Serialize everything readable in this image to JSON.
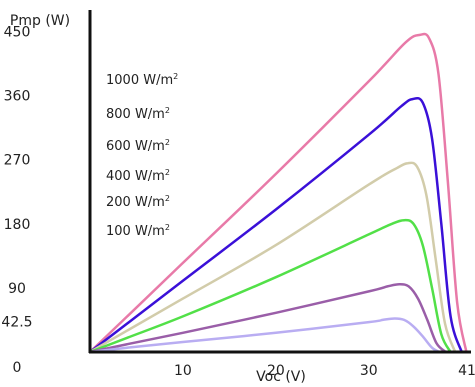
{
  "chart_data": {
    "type": "line",
    "title": "",
    "xlabel": "Voc (V)",
    "ylabel": "Pmp (W)",
    "xlim": [
      0,
      41
    ],
    "ylim": [
      0,
      480
    ],
    "x_ticks": [
      {
        "value": 10,
        "label": "10"
      },
      {
        "value": 20,
        "label": "20"
      },
      {
        "value": 30,
        "label": "30"
      },
      {
        "value": 41,
        "label": "41"
      }
    ],
    "y_ticks": [
      {
        "value": 0,
        "label": "0"
      },
      {
        "value": 42.5,
        "label": "42.5"
      },
      {
        "value": 90,
        "label": "90"
      },
      {
        "value": 180,
        "label": "180"
      },
      {
        "value": 270,
        "label": "270"
      },
      {
        "value": 360,
        "label": "360"
      },
      {
        "value": 450,
        "label": "450"
      }
    ],
    "grid": false,
    "legend_position": "top-left",
    "series": [
      {
        "name": "1000 W/m",
        "unit_sup": "2",
        "color": "#e87aa8",
        "x": [
          0,
          4,
          10,
          20,
          30,
          34,
          35.5,
          36.5,
          37.5,
          38.5,
          39.5,
          40.5
        ],
        "y": [
          0,
          50,
          125,
          250,
          380,
          435,
          445,
          440,
          390,
          240,
          70,
          0
        ]
      },
      {
        "name": "800 W/m",
        "unit_sup": "2",
        "color": "#3a10d8",
        "x": [
          0,
          4,
          10,
          20,
          30,
          33.5,
          34.7,
          35.8,
          36.8,
          37.8,
          38.8,
          40
        ],
        "y": [
          0,
          40,
          100,
          200,
          305,
          345,
          355,
          350,
          300,
          180,
          50,
          0
        ]
      },
      {
        "name": "600 W/m",
        "unit_sup": "2",
        "color": "#d2ccaa",
        "x": [
          0,
          4,
          10,
          20,
          30,
          33,
          34.2,
          35.2,
          36.2,
          37.2,
          38.2,
          39.3
        ],
        "y": [
          0,
          30,
          75,
          150,
          235,
          258,
          265,
          260,
          220,
          130,
          40,
          0
        ]
      },
      {
        "name": "400 W/m",
        "unit_sup": "2",
        "color": "#52e048",
        "x": [
          0,
          4,
          10,
          20,
          30,
          32.5,
          33.8,
          34.8,
          35.8,
          36.8,
          37.8,
          38.8
        ],
        "y": [
          0,
          20,
          50,
          105,
          165,
          180,
          185,
          180,
          150,
          90,
          25,
          0
        ]
      },
      {
        "name": "200 W/m",
        "unit_sup": "2",
        "color": "#9a5ea8",
        "x": [
          0,
          4,
          10,
          20,
          30,
          32,
          33.3,
          34.3,
          35.3,
          36.3,
          37.3,
          38.3
        ],
        "y": [
          0,
          11,
          27,
          55,
          85,
          92,
          95,
          92,
          75,
          45,
          12,
          0
        ]
      },
      {
        "name": "100 W/m",
        "unit_sup": "2",
        "color": "#b9adf2",
        "x": [
          0,
          4,
          10,
          20,
          30,
          31.5,
          32.8,
          33.8,
          34.8,
          35.8,
          36.8,
          37.6
        ],
        "y": [
          0,
          6,
          14,
          27,
          42,
          45,
          47,
          45,
          36,
          22,
          6,
          0
        ]
      }
    ]
  }
}
